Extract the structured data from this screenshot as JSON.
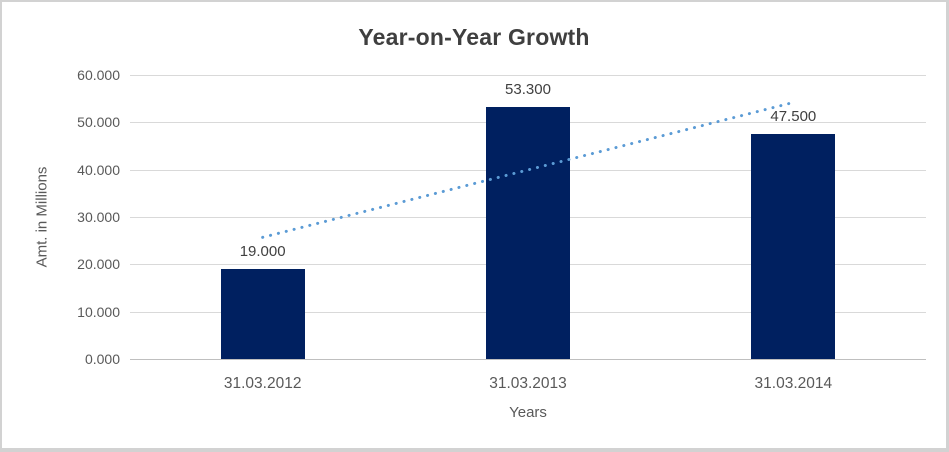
{
  "chart_data": {
    "type": "bar",
    "title": "Year-on-Year Growth",
    "xlabel": "Years",
    "ylabel": "Amt. in Millions",
    "categories": [
      "31.03.2012",
      "31.03.2013",
      "31.03.2014"
    ],
    "values": [
      19.0,
      53.3,
      47.5
    ],
    "value_labels": [
      "19.000",
      "53.300",
      "47.500"
    ],
    "ylim": [
      0,
      60
    ],
    "ytick_values": [
      0,
      10,
      20,
      30,
      40,
      50,
      60
    ],
    "ytick_labels": [
      "0.000",
      "10.000",
      "20.000",
      "30.000",
      "40.000",
      "50.000",
      "60.000"
    ],
    "grid": true,
    "legend": false,
    "bar_color": "#002060",
    "gridline_color": "#d9d9d9",
    "axis_text_color": "#595959",
    "label_text_color": "#404040",
    "trendline": {
      "type": "linear",
      "style": "dotted",
      "color": "#5b9bd5",
      "start_value": 25.7,
      "end_value": 54.2
    }
  }
}
